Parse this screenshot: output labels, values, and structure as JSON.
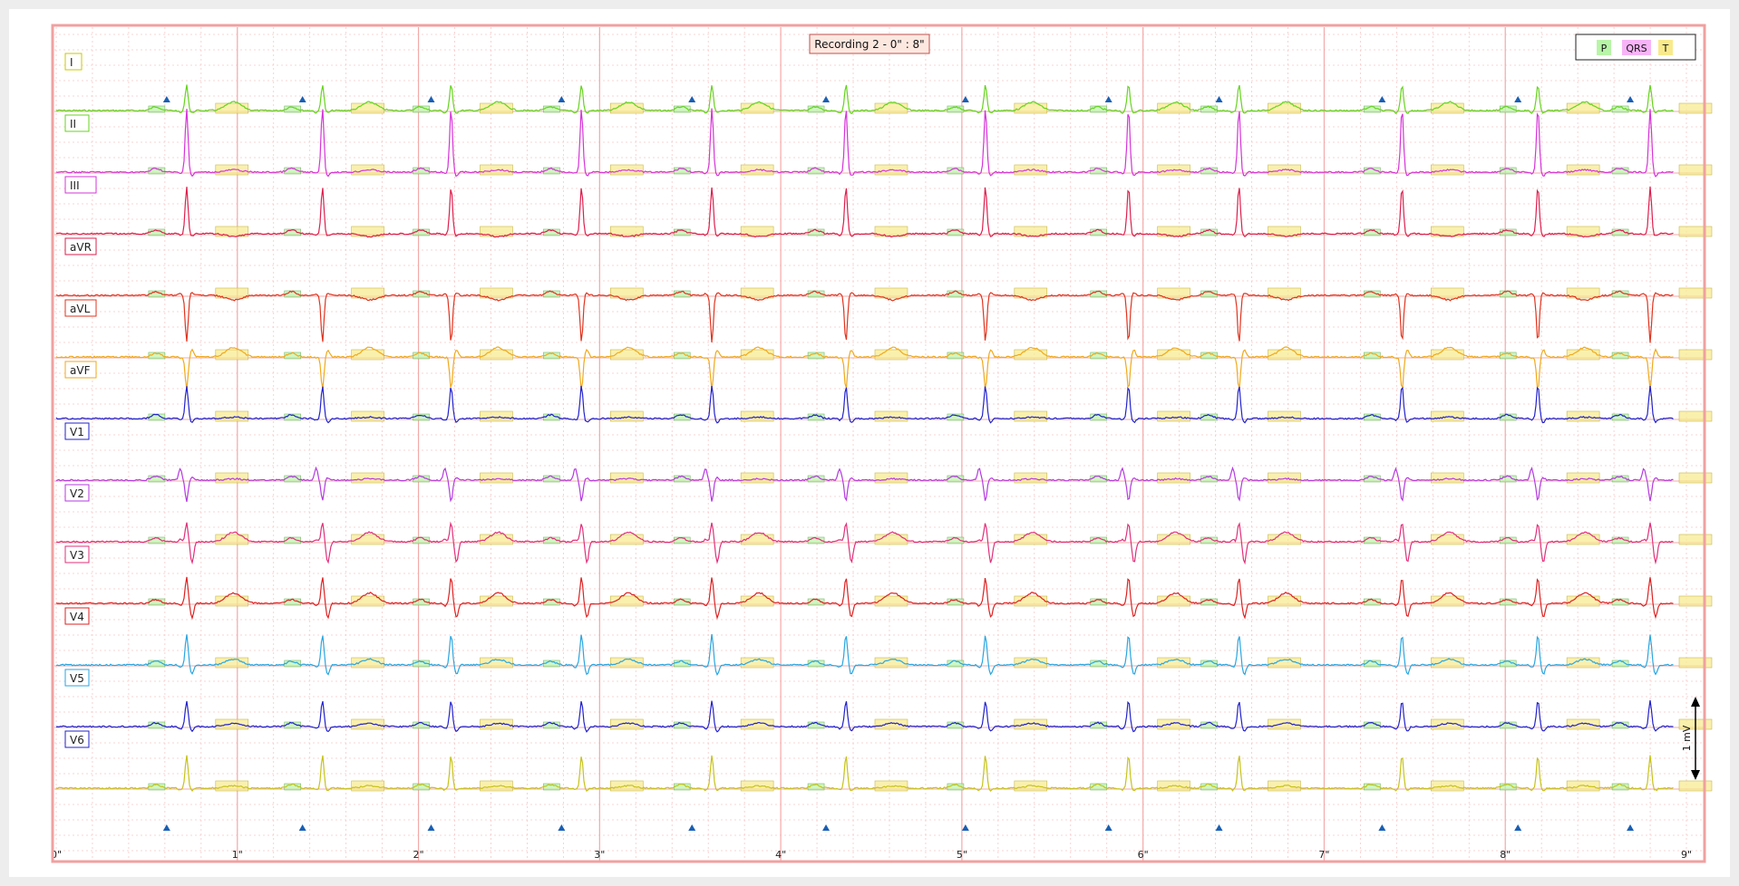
{
  "chart_data": {
    "type": "line",
    "title": "Recording 2 - 0\" : 8\"",
    "x_unit": "s",
    "xlim": [
      0,
      9
    ],
    "x_tick_labels": [
      "0\"",
      "1\"",
      "2\"",
      "3\"",
      "4\"",
      "5\"",
      "6\"",
      "7\"",
      "8\"",
      "9\""
    ],
    "scale_bar_label": "1 mV",
    "grid": true,
    "legend": {
      "position": "top-right",
      "items": [
        {
          "label": "P",
          "color": "#b8f5a8"
        },
        {
          "label": "QRS",
          "color": "#f7b4f7"
        },
        {
          "label": "T",
          "color": "#f8ea8c"
        }
      ]
    },
    "beat_times_s": [
      0.72,
      1.47,
      2.18,
      2.9,
      3.62,
      4.36,
      5.13,
      5.92,
      6.53,
      7.43,
      8.18,
      8.8
    ],
    "leads": [
      {
        "name": "I",
        "color": "#66d41e",
        "label_color": "#c9c900",
        "qrs": [
          0.05,
          -0.05,
          0.55,
          -0.05
        ],
        "t": 0.18
      },
      {
        "name": "II",
        "color": "#d534d8",
        "label_color": "#66d41e",
        "qrs": [
          0.05,
          -0.03,
          1.35,
          -0.08
        ],
        "t": 0.05
      },
      {
        "name": "III",
        "color": "#dd1f4e",
        "label_color": "#d534d8",
        "qrs": [
          0.03,
          -0.03,
          1.0,
          -0.05
        ],
        "t": -0.06
      },
      {
        "name": "aVR",
        "color": "#e0341f",
        "label_color": "#dd1f4e",
        "qrs": [
          -0.03,
          0.03,
          -1.0,
          0.05
        ],
        "t": -0.1
      },
      {
        "name": "aVL",
        "color": "#f0a91c",
        "label_color": "#e0341f",
        "qrs": [
          0.05,
          -0.02,
          -0.7,
          0.15
        ],
        "t": 0.2
      },
      {
        "name": "aVF",
        "color": "#2222cc",
        "label_color": "#f0a91c",
        "qrs": [
          0.02,
          -0.03,
          0.7,
          -0.08
        ],
        "t": 0.03
      },
      {
        "name": "V1",
        "color": "#b43ae0",
        "label_color": "#2222cc",
        "qrs": [
          0.02,
          0.25,
          -0.45,
          0.05
        ],
        "t": 0.03
      },
      {
        "name": "V2",
        "color": "#e0307a",
        "label_color": "#b43ae0",
        "qrs": [
          0.02,
          0.05,
          0.4,
          -0.45
        ],
        "t": 0.2
      },
      {
        "name": "V3",
        "color": "#dd2222",
        "label_color": "#e0307a",
        "qrs": [
          0.03,
          -0.05,
          0.55,
          -0.3
        ],
        "t": 0.22
      },
      {
        "name": "V4",
        "color": "#2aa6e0",
        "label_color": "#dd2222",
        "qrs": [
          0.05,
          -0.05,
          0.65,
          -0.2
        ],
        "t": 0.12
      },
      {
        "name": "V5",
        "color": "#2222cc",
        "label_color": "#2aa6e0",
        "qrs": [
          0.05,
          -0.05,
          0.55,
          -0.1
        ],
        "t": 0.07
      },
      {
        "name": "V6",
        "color": "#c6c31a",
        "label_color": "#2222cc",
        "qrs": [
          0.04,
          -0.04,
          0.7,
          -0.05
        ],
        "t": 0.05
      }
    ]
  }
}
